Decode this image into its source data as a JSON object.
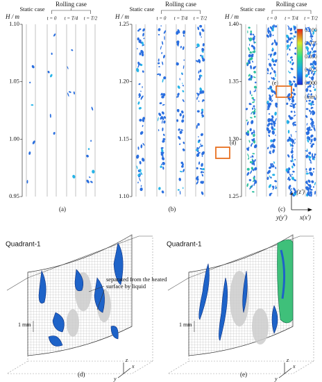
{
  "panels": [
    {
      "label": "(a)",
      "axis_title": "H / m",
      "yticks": [
        "1.10",
        "1.05",
        "1.00",
        "0.95"
      ],
      "static_label": "Static case",
      "rolling_label": "Rolling case",
      "time_labels": [
        "t = 0",
        "t = T/4",
        "t = T/2"
      ]
    },
    {
      "label": "(b)",
      "axis_title": "H / m",
      "yticks": [
        "1.25",
        "1.20",
        "1.15",
        "1.10"
      ],
      "static_label": "Static case",
      "rolling_label": "Rolling case",
      "time_labels": [
        "t = 0",
        "t = T/4",
        "t = T/2"
      ]
    },
    {
      "label": "(c)",
      "axis_title": "H / m",
      "yticks": [
        "1.40",
        "1.35",
        "1.30",
        "1.25"
      ],
      "static_label": "Static case",
      "rolling_label": "Rolling case",
      "time_labels": [
        "t = 0",
        "t = T/4",
        "t = T/2"
      ]
    }
  ],
  "callouts": [
    "(d)",
    "(e)"
  ],
  "colorbar": {
    "ticks": [
      "0.100",
      "0.075",
      "0.050",
      "0.025",
      "0.000"
    ],
    "unit": "(mm)"
  },
  "axes_icon": {
    "z": "z(z')",
    "y": "y(y')",
    "x": "x(x')"
  },
  "details": [
    {
      "label": "(d)",
      "title": "Quadrant-1",
      "annotation": "separated from the heated surface by liquid",
      "scale": "1 mm",
      "axes": {
        "z": "z",
        "x": "x",
        "y": "y"
      }
    },
    {
      "label": "(e)",
      "title": "Quadrant-1",
      "scale": "1 mm",
      "axes": {
        "z": "z",
        "x": "x",
        "y": "y"
      }
    }
  ]
}
